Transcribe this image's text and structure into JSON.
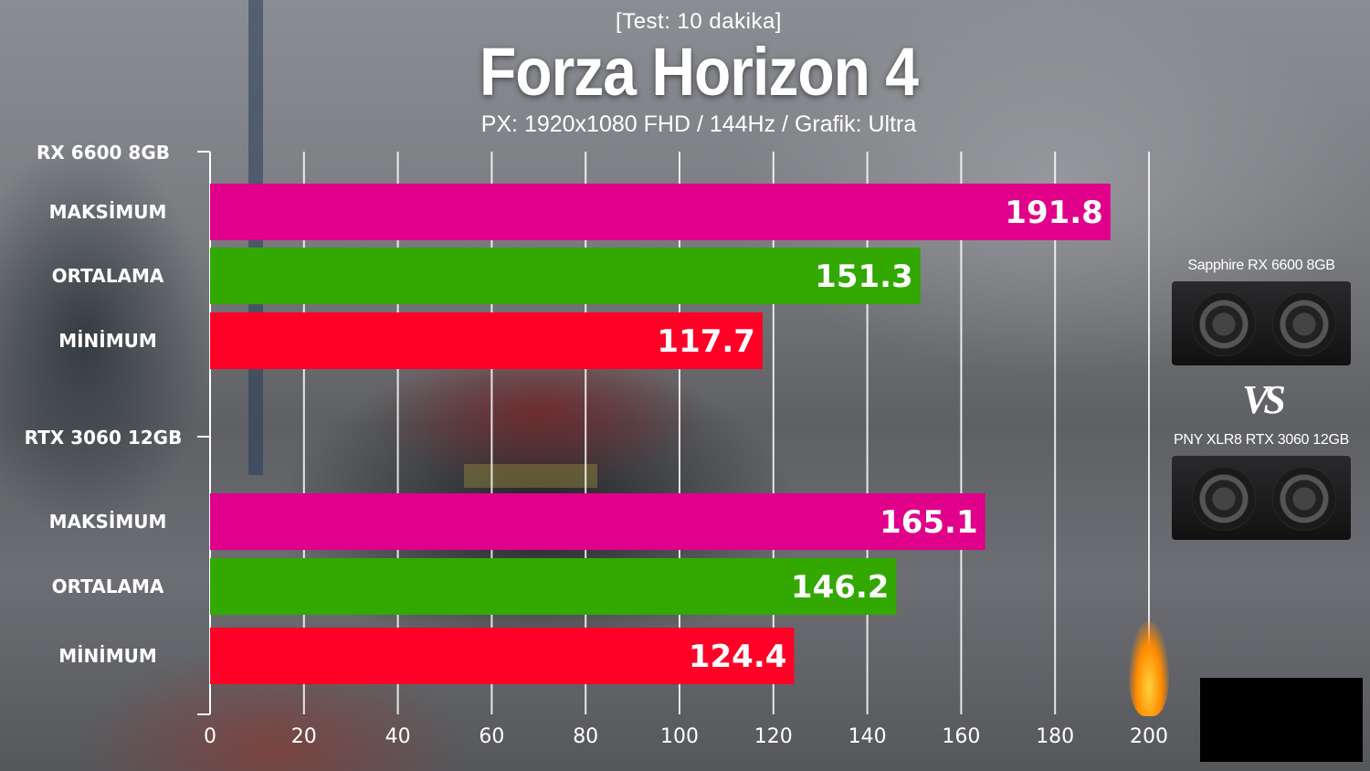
{
  "header": {
    "test_note": "[Test: 10 dakika]",
    "title": "Forza Horizon 4",
    "settings": "PX: 1920x1080 FHD / 144Hz / Grafik: Ultra"
  },
  "side_panel": {
    "gpu1_name": "Sapphire RX 6600 8GB",
    "vs_text": "VS",
    "gpu2_name": "PNY XLR8 RTX 3060 12GB"
  },
  "chart_data": {
    "type": "bar",
    "orientation": "horizontal",
    "title": "Forza Horizon 4",
    "xlim": [
      0,
      200
    ],
    "xticks": [
      0,
      20,
      40,
      60,
      80,
      100,
      120,
      140,
      160,
      180,
      200
    ],
    "grid": true,
    "colors": {
      "MAKSİMUM": "#e0008a",
      "ORTALAMA": "#32a800",
      "MİNİMUM": "#ff0026"
    },
    "groups": [
      {
        "name": "RX 6600 8GB",
        "bars": [
          {
            "label": "MAKSİMUM",
            "value": 191.8,
            "value_label": "191.8"
          },
          {
            "label": "ORTALAMA",
            "value": 151.3,
            "value_label": "151.3"
          },
          {
            "label": "MİNİMUM",
            "value": 117.7,
            "value_label": "117.7"
          }
        ]
      },
      {
        "name": "RTX 3060 12GB",
        "bars": [
          {
            "label": "MAKSİMUM",
            "value": 165.1,
            "value_label": "165.1"
          },
          {
            "label": "ORTALAMA",
            "value": 146.2,
            "value_label": "146.2"
          },
          {
            "label": "MİNİMUM",
            "value": 124.4,
            "value_label": "124.4"
          }
        ]
      }
    ]
  }
}
